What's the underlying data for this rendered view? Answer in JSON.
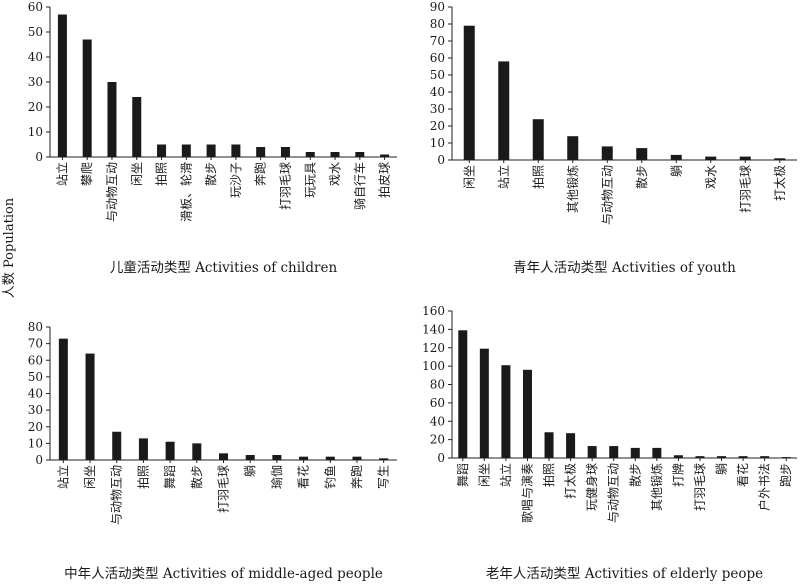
{
  "figure": {
    "ylabel": "人数 Population"
  },
  "chart_data": [
    {
      "type": "bar",
      "title": "儿童活动类型  Activities of children",
      "ylim": [
        0,
        60
      ],
      "yticks": [
        0,
        10,
        20,
        30,
        40,
        50,
        60
      ],
      "categories": [
        "站立",
        "攀爬",
        "与动物互动",
        "闲坐",
        "拍照",
        "滑板、轮滑",
        "散步",
        "玩沙子",
        "奔跑",
        "打羽毛球",
        "玩玩具",
        "戏水",
        "骑自行车",
        "拍皮球"
      ],
      "values": [
        57,
        47,
        30,
        24,
        5,
        5,
        5,
        5,
        4,
        4,
        2,
        2,
        2,
        1
      ]
    },
    {
      "type": "bar",
      "title": "青年人活动类型 Activities of youth",
      "ylim": [
        0,
        90
      ],
      "yticks": [
        0,
        10,
        20,
        30,
        40,
        50,
        60,
        70,
        80,
        90
      ],
      "categories": [
        "闲坐",
        "站立",
        "拍照",
        "其他锻炼",
        "与动物互动",
        "散步",
        "躺",
        "戏水",
        "打羽毛球",
        "打太极"
      ],
      "values": [
        79,
        58,
        24,
        14,
        8,
        7,
        3,
        2,
        2,
        1
      ]
    },
    {
      "type": "bar",
      "title": "中年人活动类型  Activities of middle-aged people",
      "ylim": [
        0,
        80
      ],
      "yticks": [
        0,
        10,
        20,
        30,
        40,
        50,
        60,
        70,
        80
      ],
      "categories": [
        "站立",
        "闲坐",
        "与动物互动",
        "拍照",
        "舞蹈",
        "散步",
        "打羽毛球",
        "躺",
        "瑜伽",
        "看花",
        "钓鱼",
        "奔跑",
        "写生"
      ],
      "values": [
        73,
        64,
        17,
        13,
        11,
        10,
        4,
        3,
        3,
        2,
        2,
        2,
        1
      ]
    },
    {
      "type": "bar",
      "title": "老年人活动类型 Activities of elderly peope",
      "ylim": [
        0,
        160
      ],
      "yticks": [
        0,
        20,
        40,
        60,
        80,
        100,
        120,
        140,
        160
      ],
      "categories": [
        "舞蹈",
        "闲坐",
        "站立",
        "歌唱与演奏",
        "拍照",
        "打太极",
        "玩健身球",
        "与动物互动",
        "散步",
        "其他锻炼",
        "打牌",
        "打羽毛球",
        "躺",
        "看花",
        "户外书法",
        "跑步"
      ],
      "values": [
        139,
        119,
        101,
        96,
        28,
        27,
        13,
        13,
        11,
        11,
        3,
        2,
        2,
        2,
        2,
        1
      ]
    }
  ]
}
